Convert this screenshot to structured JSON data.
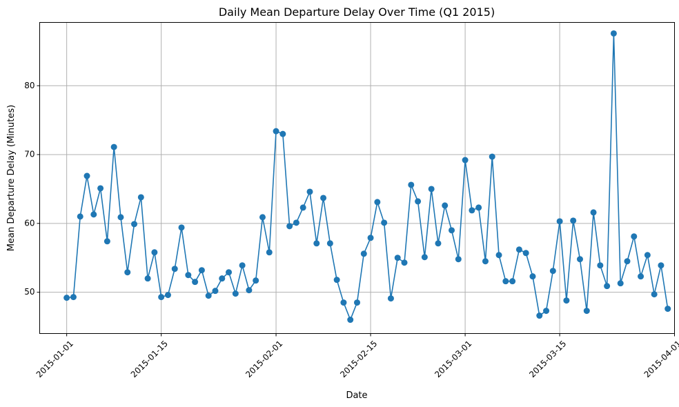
{
  "chart_data": {
    "type": "line",
    "title": "Daily Mean Departure Delay Over Time (Q1 2015)",
    "xlabel": "Date",
    "ylabel": "Mean Departure Delay (Minutes)",
    "x_start": "2015-01-01",
    "x_range": [
      "2014-12-28",
      "2015-04-01"
    ],
    "ylim": [
      44.0,
      89.2
    ],
    "grid": true,
    "x_ticks": [
      {
        "date": "2015-01-01",
        "label": "2015-01-01"
      },
      {
        "date": "2015-01-15",
        "label": "2015-01-15"
      },
      {
        "date": "2015-02-01",
        "label": "2015-02-01"
      },
      {
        "date": "2015-02-15",
        "label": "2015-02-15"
      },
      {
        "date": "2015-03-01",
        "label": "2015-03-01"
      },
      {
        "date": "2015-03-15",
        "label": "2015-03-15"
      },
      {
        "date": "2015-04-01",
        "label": "2015-04-01"
      }
    ],
    "y_ticks": [
      {
        "value": 50,
        "label": "50"
      },
      {
        "value": 60,
        "label": "60"
      },
      {
        "value": 70,
        "label": "70"
      },
      {
        "value": 80,
        "label": "80"
      }
    ],
    "series": [
      {
        "color": "#1f77b4",
        "values": [
          49.2,
          49.3,
          61.0,
          66.9,
          61.3,
          65.1,
          57.4,
          71.1,
          60.9,
          52.9,
          59.9,
          63.8,
          52.0,
          55.8,
          49.3,
          49.6,
          53.4,
          59.4,
          52.5,
          51.5,
          53.2,
          49.5,
          50.2,
          52.0,
          52.9,
          49.8,
          53.9,
          50.3,
          51.7,
          60.9,
          55.8,
          73.4,
          73.0,
          59.6,
          60.1,
          62.3,
          64.6,
          57.1,
          63.7,
          57.1,
          51.8,
          48.5,
          46.0,
          48.5,
          55.6,
          57.9,
          63.1,
          60.1,
          49.1,
          55.0,
          54.3,
          65.6,
          63.2,
          55.1,
          65.0,
          57.1,
          62.6,
          59.0,
          54.8,
          69.2,
          61.9,
          62.3,
          54.5,
          69.7,
          55.4,
          51.6,
          51.6,
          56.2,
          55.7,
          52.3,
          46.6,
          47.3,
          53.1,
          60.3,
          48.8,
          60.4,
          54.8,
          47.3,
          61.6,
          53.9,
          50.9,
          87.6,
          51.3,
          54.5,
          58.1,
          52.3,
          55.4,
          49.7,
          53.9,
          47.6
        ]
      }
    ]
  }
}
